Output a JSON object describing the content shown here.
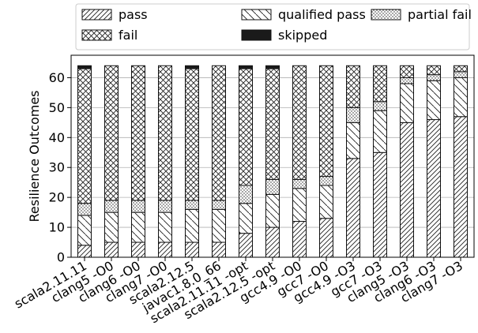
{
  "chart_data": {
    "type": "bar",
    "stacked": true,
    "ylabel": "Resilience Outcomes",
    "xlabel": "",
    "ylim": [
      0,
      67.5
    ],
    "yticks": [
      0,
      10,
      20,
      30,
      40,
      50,
      60
    ],
    "grid": true,
    "legend_position": "top",
    "categories": [
      "scala2.11.11",
      "clang5 -O0",
      "clang6 -O0",
      "clang7 -O0",
      "scala2.12.5",
      "javac1.8.0_66",
      "scala2.11.11 -opt",
      "scala2.12.5 -opt",
      "gcc4.9 -O0",
      "gcc7 -O0",
      "gcc4.9 -O3",
      "gcc7 -O3",
      "clang5 -O3",
      "clang6 -O3",
      "clang7 -O3"
    ],
    "series": [
      {
        "name": "pass",
        "pattern": "diag",
        "values": [
          4,
          5,
          5,
          5,
          5,
          5,
          8,
          10,
          12,
          13,
          33,
          35,
          45,
          46,
          47
        ]
      },
      {
        "name": "qualified pass",
        "pattern": "backdiag",
        "values": [
          10,
          10,
          10,
          10,
          11,
          11,
          10,
          11,
          11,
          11,
          12,
          14,
          13,
          13,
          13
        ]
      },
      {
        "name": "partial fail",
        "pattern": "dots",
        "values": [
          4,
          4,
          4,
          4,
          3,
          3,
          6,
          5,
          3,
          3,
          5,
          3,
          2,
          2,
          2
        ]
      },
      {
        "name": "fail",
        "pattern": "cross",
        "values": [
          45,
          45,
          45,
          45,
          44,
          45,
          39,
          37,
          38,
          37,
          14,
          12,
          4,
          3,
          2
        ]
      },
      {
        "name": "skipped",
        "pattern": "solid",
        "values": [
          1,
          0,
          0,
          0,
          1,
          0,
          1,
          1,
          0,
          0,
          0,
          0,
          0,
          0,
          0
        ]
      }
    ]
  }
}
